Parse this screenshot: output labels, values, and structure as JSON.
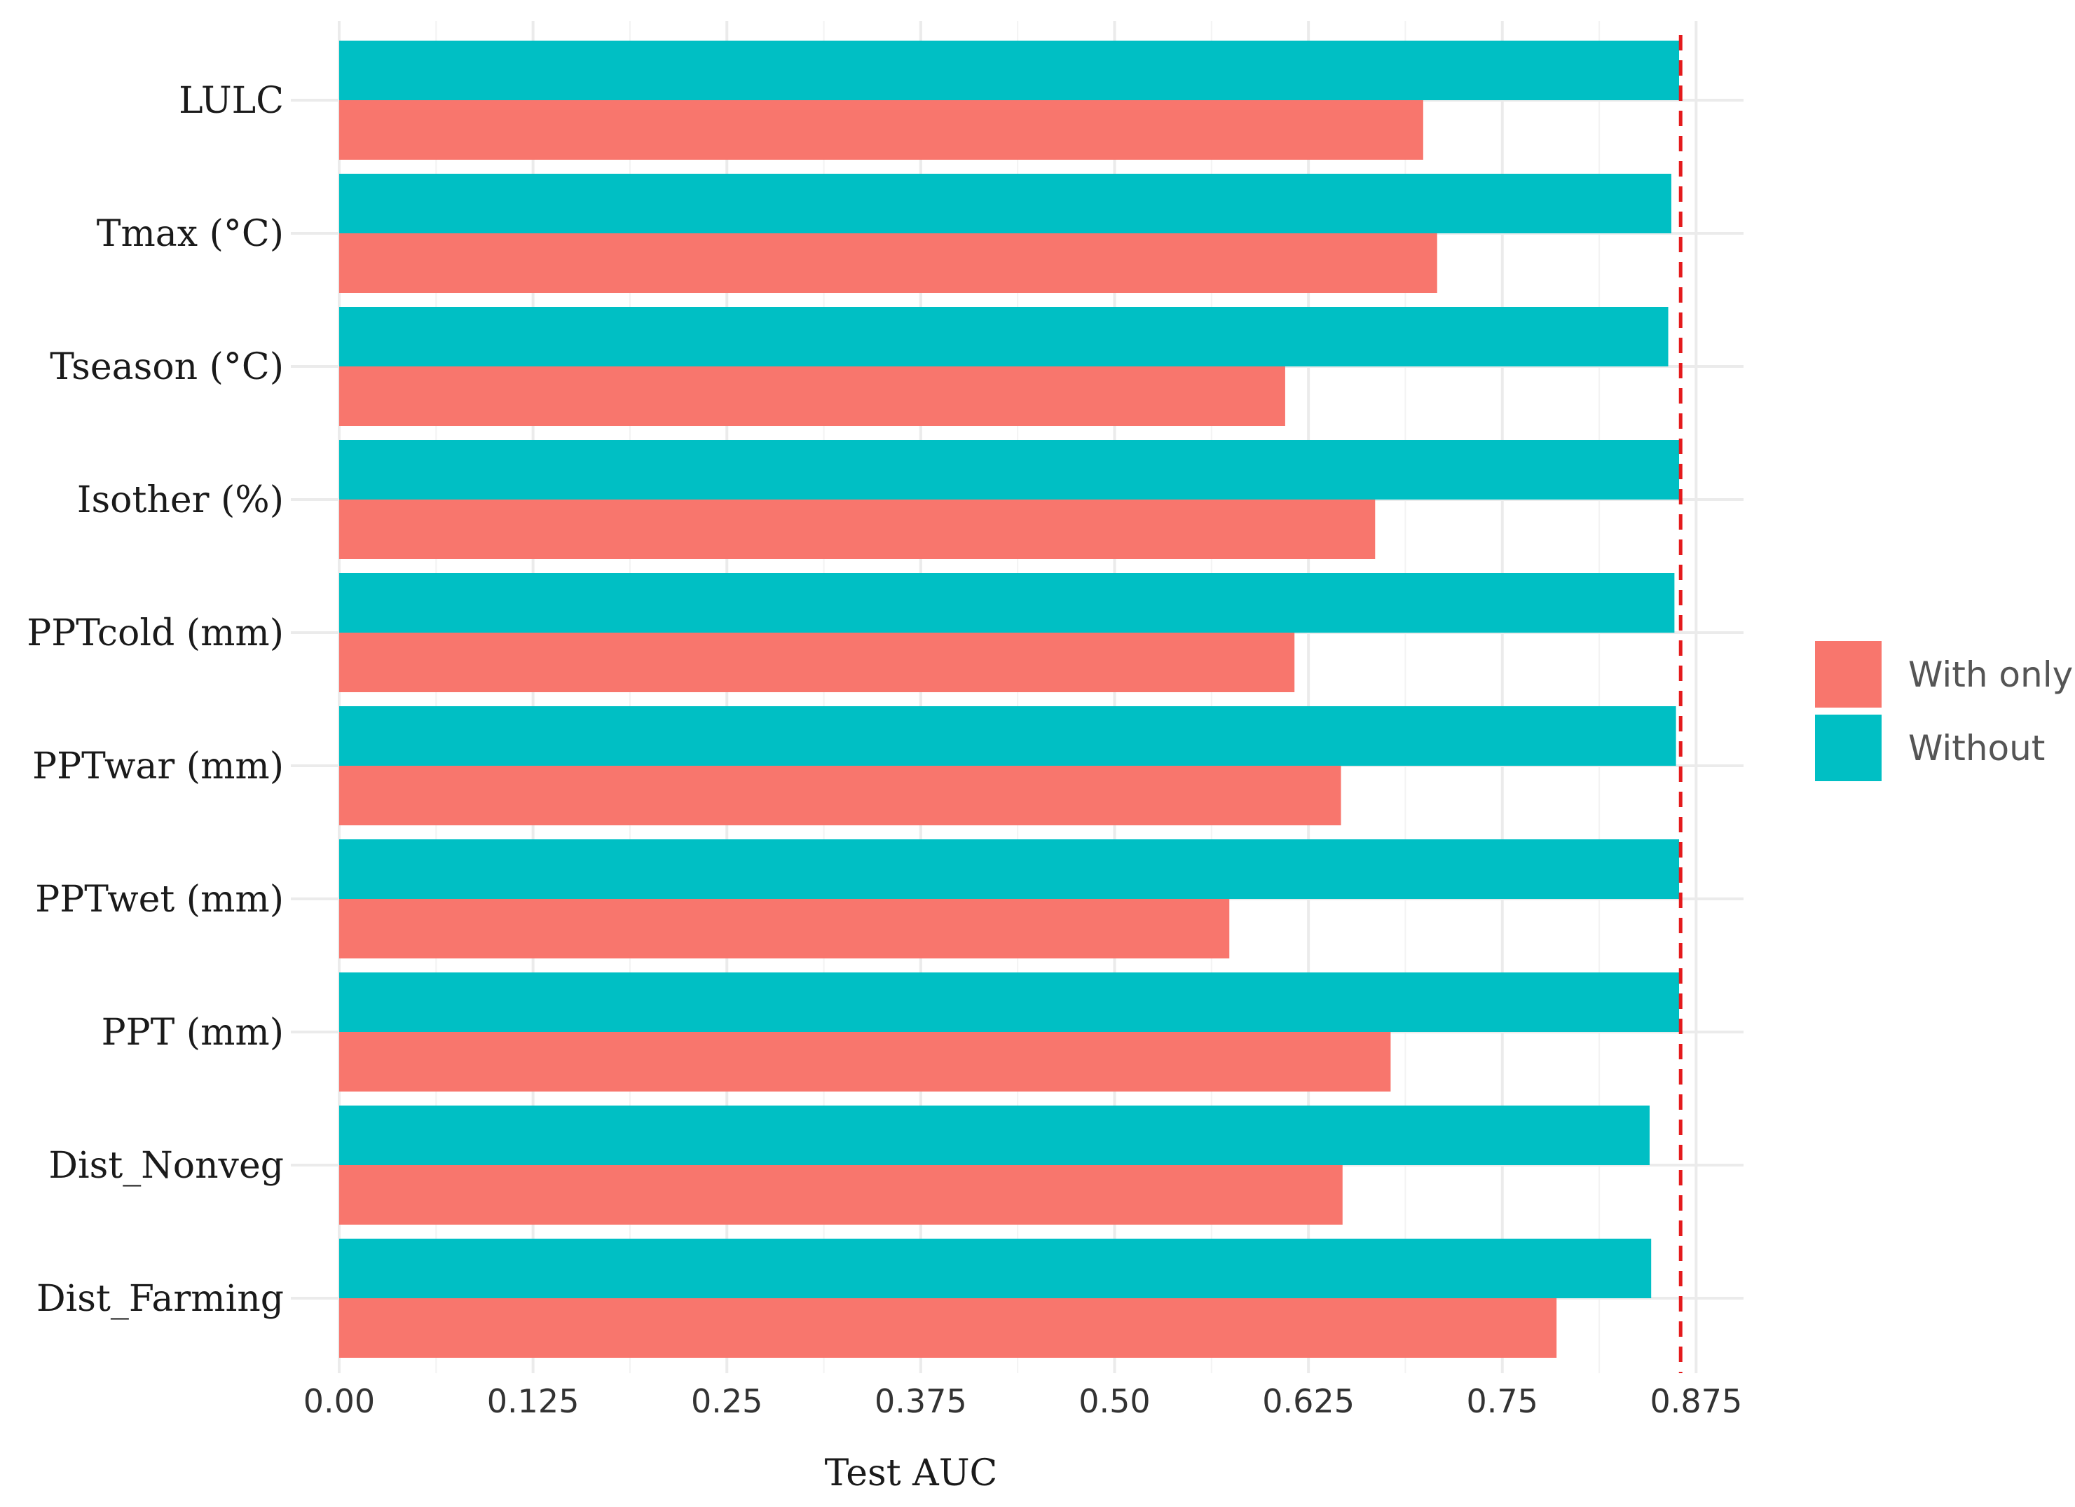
{
  "chart_data": {
    "type": "bar",
    "orientation": "horizontal",
    "categories": [
      "LULC",
      "Tmax (°C)",
      "Tseason (°C)",
      "Isother (%)",
      "PPTcold (mm)",
      "PPTwar (mm)",
      "PPTwet (mm)",
      "PPT (mm)",
      "Dist_Nonveg",
      "Dist_Farming"
    ],
    "series": [
      {
        "name": "Without",
        "color": "#00BFC4",
        "values": [
          0.864,
          0.859,
          0.857,
          0.864,
          0.861,
          0.862,
          0.864,
          0.864,
          0.845,
          0.846
        ]
      },
      {
        "name": "With only",
        "color": "#F8766D",
        "values": [
          0.699,
          0.708,
          0.61,
          0.668,
          0.616,
          0.646,
          0.574,
          0.678,
          0.647,
          0.785
        ]
      }
    ],
    "reference_line": {
      "value": 0.865,
      "style": "dashed",
      "color": "#E41A1C"
    },
    "xlabel": "Test AUC",
    "ylabel": "",
    "xlim": [
      0,
      0.9
    ],
    "x_ticks": [
      "0.00",
      "0.125",
      "0.25",
      "0.375",
      "0.50",
      "0.625",
      "0.75",
      "0.875"
    ],
    "x_tick_values": [
      0,
      0.125,
      0.25,
      0.375,
      0.5,
      0.625,
      0.75,
      0.875
    ],
    "grid": true,
    "legend_position": "right",
    "legend": [
      {
        "label": "With only",
        "color": "#F8766D"
      },
      {
        "label": "Without",
        "color": "#00BFC4"
      }
    ]
  }
}
